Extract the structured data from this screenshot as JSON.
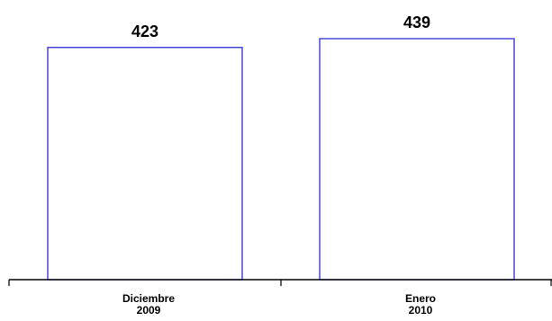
{
  "chart_data": {
    "type": "bar",
    "categories": [
      [
        "Diciembre",
        "2009"
      ],
      [
        "Enero",
        "2010"
      ]
    ],
    "values": [
      423,
      439
    ],
    "data_labels": [
      "423",
      "439"
    ],
    "title": "",
    "xlabel": "",
    "ylabel": "",
    "bar_fill": "#ffffff",
    "bar_stroke": "#2b2bd6",
    "grid": false,
    "legend": "none"
  }
}
